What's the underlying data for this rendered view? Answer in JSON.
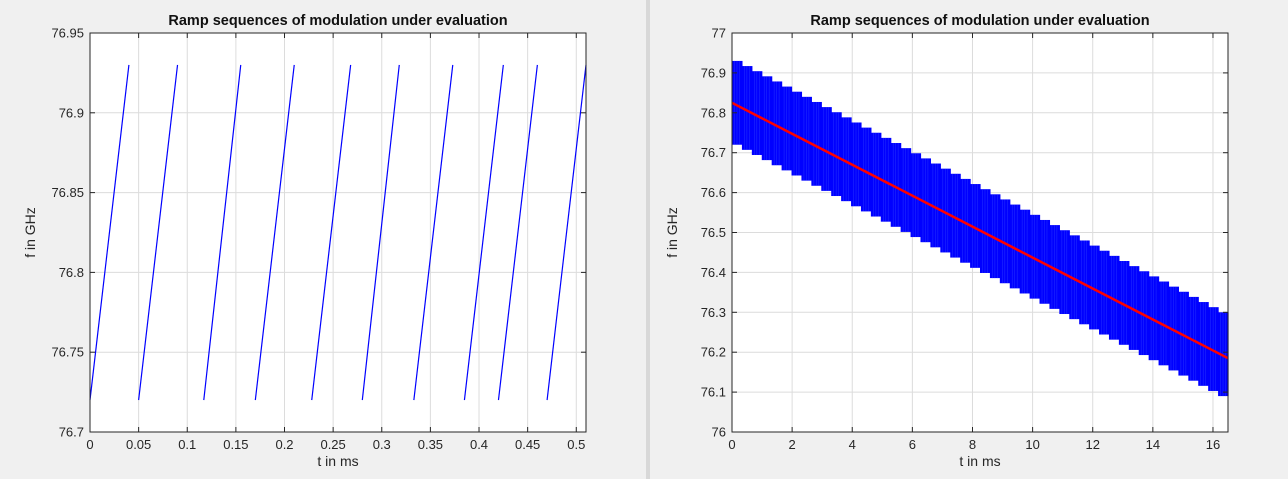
{
  "chart_data": [
    {
      "type": "line",
      "title": "Ramp sequences of modulation under evaluation",
      "xlabel": "t in ms",
      "ylabel": "f in GHz",
      "xlim": [
        0,
        0.51
      ],
      "ylim": [
        76.7,
        76.95
      ],
      "xticks": [
        0,
        0.05,
        0.1,
        0.15,
        0.2,
        0.25,
        0.3,
        0.35,
        0.4,
        0.45,
        0.5
      ],
      "xtick_labels": [
        "0",
        "0.05",
        "0.1",
        "0.15",
        "0.2",
        "0.25",
        "0.3",
        "0.35",
        "0.4",
        "0.45",
        "0.5"
      ],
      "yticks": [
        76.7,
        76.75,
        76.8,
        76.85,
        76.9,
        76.95
      ],
      "ytick_labels": [
        "76.7",
        "76.75",
        "76.8",
        "76.85",
        "76.9",
        "76.95"
      ],
      "grid": true,
      "series": [
        {
          "color": "#0000ff",
          "ramp_f_start": 76.72,
          "ramp_f_end": 76.93,
          "ramps": [
            [
              0.0,
              0.04
            ],
            [
              0.05,
              0.09
            ],
            [
              0.117,
              0.155
            ],
            [
              0.17,
              0.21
            ],
            [
              0.228,
              0.268
            ],
            [
              0.28,
              0.318
            ],
            [
              0.333,
              0.373
            ],
            [
              0.385,
              0.425
            ],
            [
              0.42,
              0.46
            ],
            [
              0.47,
              0.51
            ]
          ]
        }
      ]
    },
    {
      "type": "area",
      "title": "Ramp sequences of modulation under evaluation",
      "xlabel": "t in ms",
      "ylabel": "f in GHz",
      "xlim": [
        0,
        16.5
      ],
      "ylim": [
        76,
        77
      ],
      "xticks": [
        0,
        2,
        4,
        6,
        8,
        10,
        12,
        14,
        16
      ],
      "xtick_labels": [
        "0",
        "2",
        "4",
        "6",
        "8",
        "10",
        "12",
        "14",
        "16"
      ],
      "yticks": [
        76,
        76.1,
        76.2,
        76.3,
        76.4,
        76.5,
        76.6,
        76.7,
        76.8,
        76.9,
        77
      ],
      "ytick_labels": [
        "76",
        "76.1",
        "76.2",
        "76.3",
        "76.4",
        "76.5",
        "76.6",
        "76.7",
        "76.8",
        "76.9",
        "77"
      ],
      "grid": true,
      "series": [
        {
          "color": "#0000ff",
          "x_start": 0,
          "x_end": 16.5,
          "upper_start": 76.93,
          "upper_end": 76.3,
          "lower_start": 76.72,
          "lower_end": 76.09,
          "steps": 50
        },
        {
          "color": "#ff0000",
          "x": [
            0,
            16.5
          ],
          "y": [
            76.825,
            76.185
          ]
        }
      ]
    }
  ]
}
